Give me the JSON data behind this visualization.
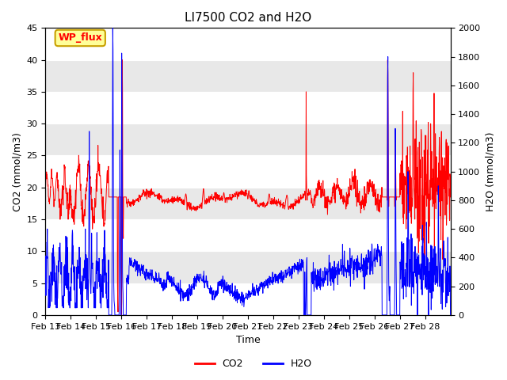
{
  "title": "LI7500 CO2 and H2O",
  "xlabel": "Time",
  "ylabel_left": "CO2 (mmol/m3)",
  "ylabel_right": "H2O (mmol/m3)",
  "xlim_days": [
    0,
    16
  ],
  "ylim_left": [
    0,
    45
  ],
  "ylim_right": [
    0,
    2000
  ],
  "yticks_left": [
    0,
    5,
    10,
    15,
    20,
    25,
    30,
    35,
    40,
    45
  ],
  "yticks_right": [
    0,
    200,
    400,
    600,
    800,
    1000,
    1200,
    1400,
    1600,
    1800,
    2000
  ],
  "xtick_labels": [
    "Feb 13",
    "Feb 14",
    "Feb 15",
    "Feb 16",
    "Feb 17",
    "Feb 18",
    "Feb 19",
    "Feb 20",
    "Feb 21",
    "Feb 22",
    "Feb 23",
    "Feb 24",
    "Feb 25",
    "Feb 26",
    "Feb 27",
    "Feb 28"
  ],
  "co2_color": "#ff0000",
  "h2o_color": "#0000ff",
  "background_color": "#ffffff",
  "plot_bg_color": "#e8e8e8",
  "grid_color": "#ffffff",
  "stripe_color": "#f0f0f0",
  "legend_label_co2": "CO2",
  "legend_label_h2o": "H2O",
  "annotation_text": "WP_flux",
  "annotation_bg": "#ffff99",
  "annotation_border": "#c8a000",
  "title_fontsize": 11,
  "label_fontsize": 9,
  "tick_fontsize": 8
}
